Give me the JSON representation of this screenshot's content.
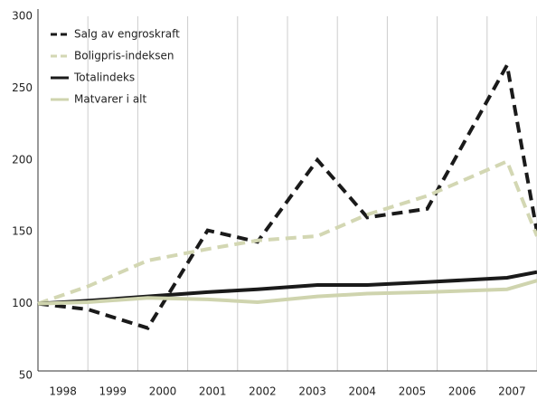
{
  "chart_data": {
    "type": "line",
    "x": [
      1997.5,
      1998.5,
      1999.7,
      2000.9,
      2001.9,
      2003.1,
      2004.1,
      2005.3,
      2006.9,
      2007.5
    ],
    "series": [
      {
        "name": "Salg av engroskraft",
        "color": "#1a1a1a",
        "dashed": true,
        "values": [
          100,
          96,
          83,
          151,
          143,
          200,
          160,
          166,
          266,
          150
        ]
      },
      {
        "name": "Boligpris-indeksen",
        "color": "#d3d7b3",
        "dashed": true,
        "values": [
          100,
          112,
          130,
          138,
          144,
          147,
          162,
          175,
          199,
          147
        ]
      },
      {
        "name": "Totalindeks",
        "color": "#1a1a1a",
        "dashed": false,
        "values": [
          100,
          102,
          105,
          108,
          110,
          113,
          113,
          115,
          118,
          122
        ]
      },
      {
        "name": "Matvarer i alt",
        "color": "#cfd4ae",
        "dashed": false,
        "values": [
          100,
          101,
          104,
          103,
          101,
          105,
          107,
          108,
          110,
          116
        ]
      }
    ],
    "xlim": [
      1997.5,
      2007.5
    ],
    "xticks": [
      1998,
      1999,
      2000,
      2001,
      2002,
      2003,
      2004,
      2005,
      2006,
      2007
    ],
    "ylim": [
      50,
      300
    ],
    "yticks": [
      50,
      100,
      150,
      200,
      250,
      300
    ],
    "legend": "upper left"
  }
}
